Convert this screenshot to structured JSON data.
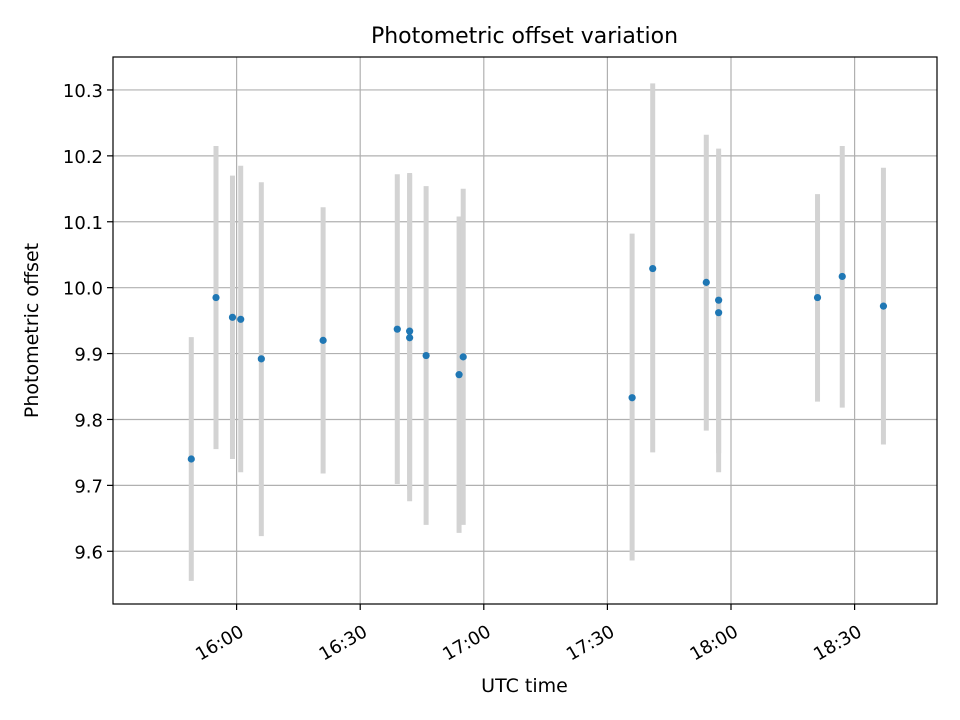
{
  "chart_data": {
    "type": "scatter",
    "title": "Photometric offset variation",
    "xlabel": "UTC time",
    "ylabel": "Photometric offset",
    "x_ticks": [
      "16:00",
      "16:30",
      "17:00",
      "17:30",
      "18:00",
      "18:30"
    ],
    "x_tick_minutes": [
      960,
      990,
      1020,
      1050,
      1080,
      1110
    ],
    "xlim": [
      "15:30",
      "18:50"
    ],
    "y_ticks": [
      "9.6",
      "9.7",
      "9.8",
      "9.9",
      "10.0",
      "10.1",
      "10.2",
      "10.3"
    ],
    "y_tick_values": [
      9.6,
      9.7,
      9.8,
      9.9,
      10.0,
      10.1,
      10.2,
      10.3
    ],
    "ylim": [
      9.52,
      10.35
    ],
    "grid": true,
    "series": [
      {
        "marker_color": "#1f77b4",
        "errorbar_color": "#d3d3d3",
        "points": [
          {
            "time": "15:49",
            "y": 9.74,
            "ylo": 9.555,
            "yhi": 9.925
          },
          {
            "time": "15:55",
            "y": 9.985,
            "ylo": 9.755,
            "yhi": 10.215
          },
          {
            "time": "15:59",
            "y": 9.955,
            "ylo": 9.74,
            "yhi": 10.17
          },
          {
            "time": "16:01",
            "y": 9.952,
            "ylo": 9.72,
            "yhi": 10.185
          },
          {
            "time": "16:06",
            "y": 9.892,
            "ylo": 9.623,
            "yhi": 10.16
          },
          {
            "time": "16:21",
            "y": 9.92,
            "ylo": 9.718,
            "yhi": 10.122
          },
          {
            "time": "16:39",
            "y": 9.937,
            "ylo": 9.702,
            "yhi": 10.172
          },
          {
            "time": "16:42",
            "y": 9.924,
            "ylo": 9.676,
            "yhi": 10.172
          },
          {
            "time": "16:42",
            "y": 9.934,
            "ylo": 9.694,
            "yhi": 10.174
          },
          {
            "time": "16:46",
            "y": 9.897,
            "ylo": 9.64,
            "yhi": 10.154
          },
          {
            "time": "16:54",
            "y": 9.868,
            "ylo": 9.628,
            "yhi": 10.108
          },
          {
            "time": "16:55",
            "y": 9.895,
            "ylo": 9.64,
            "yhi": 10.15
          },
          {
            "time": "17:36",
            "y": 9.833,
            "ylo": 9.586,
            "yhi": 10.082
          },
          {
            "time": "17:41",
            "y": 10.029,
            "ylo": 9.75,
            "yhi": 10.31
          },
          {
            "time": "17:54",
            "y": 10.008,
            "ylo": 9.783,
            "yhi": 10.232
          },
          {
            "time": "17:57",
            "y": 9.981,
            "ylo": 9.749,
            "yhi": 10.211
          },
          {
            "time": "17:57",
            "y": 9.962,
            "ylo": 9.72,
            "yhi": 10.2
          },
          {
            "time": "18:21",
            "y": 9.985,
            "ylo": 9.827,
            "yhi": 10.142
          },
          {
            "time": "18:27",
            "y": 10.017,
            "ylo": 9.818,
            "yhi": 10.215
          },
          {
            "time": "18:37",
            "y": 9.972,
            "ylo": 9.762,
            "yhi": 10.182
          }
        ]
      }
    ]
  }
}
